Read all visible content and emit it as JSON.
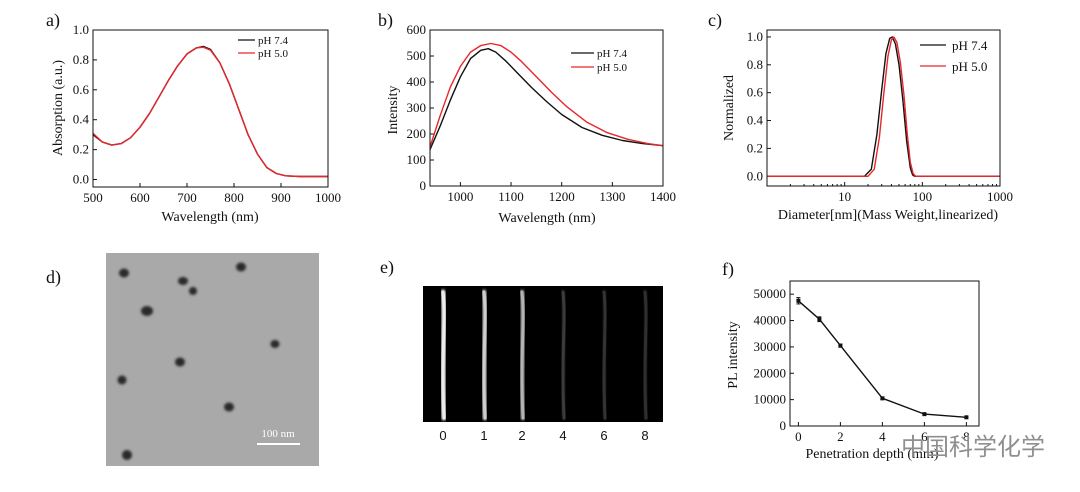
{
  "panels": {
    "a": {
      "letter": "a)",
      "chart_data": {
        "type": "line",
        "xlabel": "Wavelength (nm)",
        "ylabel": "Absorption (a.u.)",
        "xlim": [
          500,
          1000
        ],
        "ylim": [
          -0.05,
          1.0
        ],
        "xticks": [
          500,
          600,
          700,
          800,
          900,
          1000
        ],
        "yticks": [
          0.0,
          0.2,
          0.4,
          0.6,
          0.8,
          1.0
        ],
        "ytick_labels": [
          "0.0",
          "0.2",
          "0.4",
          "0.6",
          "0.8",
          "1.0"
        ],
        "series": [
          {
            "name": "pH 7.4",
            "color": "#111111",
            "x": [
              500,
              520,
              540,
              560,
              580,
              600,
              620,
              640,
              660,
              680,
              700,
              720,
              735,
              750,
              770,
              790,
              810,
              830,
              850,
              870,
              890,
              910,
              940,
              970,
              1000
            ],
            "y": [
              0.3,
              0.25,
              0.23,
              0.24,
              0.28,
              0.35,
              0.44,
              0.55,
              0.66,
              0.76,
              0.84,
              0.88,
              0.89,
              0.87,
              0.78,
              0.64,
              0.47,
              0.3,
              0.17,
              0.08,
              0.04,
              0.025,
              0.02,
              0.02,
              0.02
            ]
          },
          {
            "name": "pH 5.0",
            "color": "#e8262b",
            "x": [
              500,
              520,
              540,
              560,
              580,
              600,
              620,
              640,
              660,
              680,
              700,
              720,
              735,
              750,
              770,
              790,
              810,
              830,
              850,
              870,
              890,
              910,
              940,
              970,
              1000
            ],
            "y": [
              0.31,
              0.25,
              0.23,
              0.24,
              0.28,
              0.35,
              0.44,
              0.55,
              0.66,
              0.76,
              0.84,
              0.88,
              0.885,
              0.865,
              0.78,
              0.64,
              0.47,
              0.3,
              0.17,
              0.08,
              0.04,
              0.025,
              0.02,
              0.02,
              0.02
            ]
          }
        ]
      }
    },
    "b": {
      "letter": "b)",
      "chart_data": {
        "type": "line",
        "xlabel": "Wavelength (nm)",
        "ylabel": "Intensity",
        "xlim": [
          940,
          1400
        ],
        "ylim": [
          0,
          600
        ],
        "xticks": [
          1000,
          1100,
          1200,
          1300,
          1400
        ],
        "yticks": [
          0,
          100,
          200,
          300,
          400,
          500,
          600
        ],
        "series": [
          {
            "name": "pH 7.4",
            "color": "#111111",
            "x": [
              940,
              960,
              980,
              1000,
              1020,
              1040,
              1055,
              1070,
              1090,
              1110,
              1140,
              1170,
              1200,
              1240,
              1280,
              1320,
              1360,
              1400
            ],
            "y": [
              140,
              230,
              330,
              420,
              490,
              522,
              528,
              515,
              480,
              440,
              380,
              325,
              275,
              225,
              195,
              175,
              163,
              155
            ]
          },
          {
            "name": "pH 5.0",
            "color": "#e8262b",
            "x": [
              940,
              960,
              980,
              1000,
              1020,
              1040,
              1060,
              1080,
              1100,
              1120,
              1150,
              1180,
              1210,
              1250,
              1290,
              1330,
              1370,
              1400
            ],
            "y": [
              150,
              270,
              380,
              460,
              515,
              540,
              548,
              540,
              515,
              480,
              420,
              360,
              305,
              245,
              205,
              180,
              163,
              155
            ]
          }
        ]
      }
    },
    "c": {
      "letter": "c)",
      "chart_data": {
        "type": "line",
        "xscale": "log",
        "xlabel": "Diameter[nm](Mass Weight,linearized)",
        "ylabel": "Normalized",
        "xlim": [
          1,
          1000
        ],
        "ylim": [
          -0.07,
          1.05
        ],
        "xticks": [
          10,
          100,
          1000
        ],
        "yticks": [
          0.0,
          0.2,
          0.4,
          0.6,
          0.8,
          1.0
        ],
        "ytick_labels": [
          "0.0",
          "0.2",
          "0.4",
          "0.6",
          "0.8",
          "1.0"
        ],
        "series": [
          {
            "name": "pH 7.4",
            "color": "#111111",
            "x": [
              1,
              18,
              22,
              26,
              30,
              34,
              38,
              41,
              45,
              50,
              56,
              63,
              70,
              75,
              80,
              1000
            ],
            "y": [
              0,
              0,
              0.05,
              0.3,
              0.62,
              0.88,
              0.99,
              1.0,
              0.95,
              0.8,
              0.55,
              0.25,
              0.06,
              0.01,
              0,
              0
            ]
          },
          {
            "name": "pH 5.0",
            "color": "#e8262b",
            "x": [
              1,
              20,
              24,
              28,
              32,
              36,
              40,
              43,
              47,
              52,
              58,
              64,
              70,
              76,
              82,
              1000
            ],
            "y": [
              0,
              0,
              0.05,
              0.28,
              0.6,
              0.86,
              0.98,
              1.0,
              0.96,
              0.82,
              0.58,
              0.3,
              0.1,
              0.02,
              0,
              0
            ]
          }
        ]
      }
    },
    "d": {
      "letter": "d)",
      "scale_bar_label": "100 nm"
    },
    "e": {
      "letter": "e)",
      "lane_labels": [
        "0",
        "1",
        "2",
        "4",
        "6",
        "8"
      ],
      "lane_intensity": [
        1.0,
        0.85,
        0.72,
        0.12,
        0.08,
        0.06
      ]
    },
    "f": {
      "letter": "f)",
      "chart_data": {
        "type": "line",
        "xlabel": "Penetration depth (mm)",
        "ylabel": "PL intensity",
        "xlim": [
          -0.4,
          8.6
        ],
        "ylim": [
          0,
          55000
        ],
        "xticks": [
          0,
          2,
          4,
          6,
          8
        ],
        "yticks": [
          0,
          10000,
          20000,
          30000,
          40000,
          50000
        ],
        "series": [
          {
            "name": "PL intensity",
            "color": "#111111",
            "x": [
              0,
              1,
              2,
              4,
              6,
              8
            ],
            "y": [
              47500,
              40500,
              30500,
              10500,
              4500,
              3300
            ],
            "yerr": [
              1200,
              900,
              600,
              500,
              300,
              200
            ]
          }
        ]
      }
    }
  },
  "watermark": "中国科学化学"
}
